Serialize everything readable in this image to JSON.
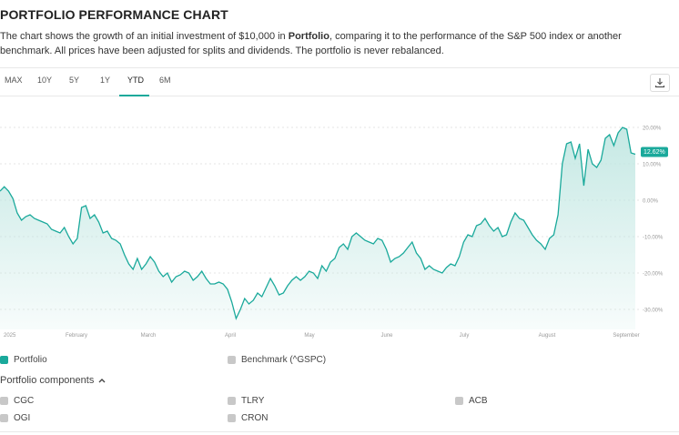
{
  "header": {
    "title": "PORTFOLIO PERFORMANCE CHART",
    "desc_part1": "The chart shows the growth of an initial investment of $10,000 in ",
    "desc_bold": "Portfolio",
    "desc_part2": ", comparing it to the performance of the S&P 500 index or another benchmark. All prices have been adjusted for splits and dividends. The portfolio is never rebalanced."
  },
  "tabs": [
    "MAX",
    "10Y",
    "5Y",
    "1Y",
    "YTD",
    "6M"
  ],
  "active_tab": "YTD",
  "icons": {
    "download": "download-icon",
    "chevron": "chevron-up-icon"
  },
  "colors": {
    "accent": "#1aa99b",
    "fill_top": "#bfe6e1",
    "grid": "#dddddd",
    "label": "#999999"
  },
  "chart_data": {
    "type": "area",
    "ylabels": [
      "20.00%",
      "10.00%",
      "0.00%",
      "-10.00%",
      "-20.00%",
      "-30.00%"
    ],
    "ylim": [
      -35,
      25
    ],
    "xlabels": [
      "2025",
      "February",
      "March",
      "April",
      "May",
      "June",
      "July",
      "August",
      "September"
    ],
    "last_value_label": "12.62%",
    "series": [
      {
        "name": "Portfolio",
        "values": [
          2.5,
          3.7,
          2.5,
          0.5,
          -3.5,
          -5.5,
          -4.5,
          -4,
          -5,
          -5.5,
          -6,
          -6.5,
          -8,
          -8.5,
          -9,
          -7.5,
          -10,
          -12,
          -10.5,
          -2,
          -1.5,
          -5,
          -4,
          -6,
          -9,
          -8.5,
          -10.5,
          -11,
          -12,
          -15,
          -17.5,
          -19,
          -16,
          -19,
          -17.5,
          -15.5,
          -17,
          -19.5,
          -21,
          -20,
          -22.5,
          -21,
          -20.5,
          -19.5,
          -20,
          -22,
          -21,
          -19.5,
          -21.5,
          -23,
          -23,
          -22.5,
          -23,
          -24.5,
          -28,
          -32.5,
          -30,
          -27,
          -28.5,
          -27.5,
          -25.5,
          -26.5,
          -24,
          -21.5,
          -23.5,
          -26,
          -25.5,
          -23.5,
          -22,
          -21,
          -22,
          -21,
          -19.5,
          -20,
          -21.5,
          -18,
          -19.5,
          -17,
          -16,
          -13,
          -12,
          -13.5,
          -10,
          -9,
          -10,
          -11,
          -11.5,
          -12,
          -10.5,
          -11,
          -13.5,
          -17,
          -16,
          -15.5,
          -14.5,
          -13,
          -11.5,
          -14.5,
          -16,
          -19,
          -18,
          -19,
          -19.5,
          -20,
          -18.5,
          -17.5,
          -18,
          -15.5,
          -11.5,
          -9.5,
          -10,
          -7,
          -6.5,
          -5,
          -7,
          -8.5,
          -7.5,
          -10,
          -9.5,
          -6,
          -3.5,
          -5,
          -5.5,
          -7.5,
          -9.5,
          -11,
          -12,
          -13.5,
          -10.5,
          -9.5,
          -4,
          10,
          15.5,
          16,
          11.5,
          15.5,
          4,
          14,
          10,
          9,
          11,
          17,
          18,
          15,
          18.5,
          20,
          19.5,
          13,
          12.62
        ]
      }
    ],
    "legend": [
      "Portfolio",
      "Benchmark (^GSPC)"
    ]
  },
  "components": {
    "toggle_label": "Portfolio components",
    "items": [
      "CGC",
      "TLRY",
      "ACB",
      "OGI",
      "CRON"
    ]
  }
}
